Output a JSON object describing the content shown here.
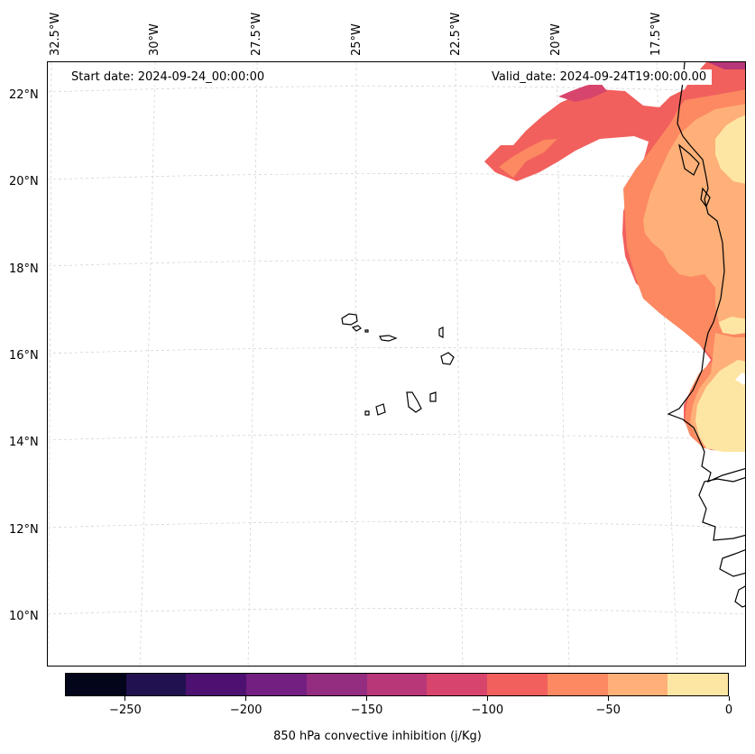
{
  "map": {
    "start_date": "Start date: 2024-09-24_00:00:00",
    "valid_date": "Valid_date: 2024-09-24T19:00:00.00",
    "lon_labels": [
      "32.5°W",
      "30°W",
      "27.5°W",
      "25°W",
      "22.5°W",
      "20°W",
      "17.5°W"
    ],
    "lat_labels": [
      "22°N",
      "20°N",
      "18°N",
      "16°N",
      "14°N",
      "12°N",
      "10°N"
    ],
    "gridlines": "dashed-gray"
  },
  "colorbar": {
    "label": "850 hPa convective inhibition (j/Kg)",
    "min": -275,
    "max": 0,
    "step": 25,
    "tick_labels": [
      "−250",
      "−200",
      "−150",
      "−100",
      "−50",
      "0"
    ],
    "tick_values": [
      -250,
      -200,
      -150,
      -100,
      -50,
      0
    ],
    "colors": [
      "#03051a",
      "#221150",
      "#4c1171",
      "#721f81",
      "#942c80",
      "#b73779",
      "#d8456c",
      "#f1605d",
      "#fc8961",
      "#feb078",
      "#fde6a4"
    ]
  }
}
